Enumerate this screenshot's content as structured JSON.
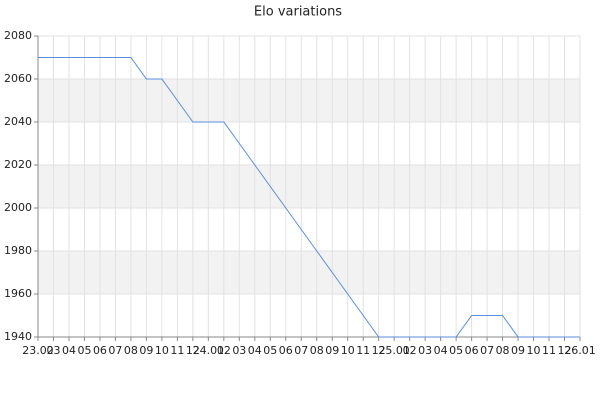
{
  "chart_data": {
    "type": "line",
    "title": "Elo variations",
    "categories": [
      "23.02",
      "03",
      "04",
      "05",
      "06",
      "07",
      "08",
      "09",
      "10",
      "11",
      "12",
      "24.01",
      "02",
      "03",
      "04",
      "05",
      "06",
      "07",
      "08",
      "09",
      "10",
      "11",
      "12",
      "25.01",
      "02",
      "03",
      "04",
      "05",
      "06",
      "07",
      "08",
      "09",
      "10",
      "11",
      "12",
      "26.01"
    ],
    "series": [
      {
        "name": "Elo",
        "color": "#5a8edb",
        "values": [
          2070,
          2070,
          2070,
          2070,
          2070,
          2070,
          2070,
          2060,
          2060,
          2050,
          2040,
          2040,
          2040,
          2030,
          2020,
          2010,
          2000,
          1990,
          1980,
          1970,
          1960,
          1950,
          1940,
          1940,
          1940,
          1940,
          1940,
          1940,
          1950,
          1950,
          1950,
          1940,
          1940,
          1940,
          1940,
          1940
        ]
      }
    ],
    "ylim": [
      1940,
      2080
    ],
    "yticks": [
      1940,
      1960,
      1980,
      2000,
      2020,
      2040,
      2060,
      2080
    ],
    "grid": true
  }
}
